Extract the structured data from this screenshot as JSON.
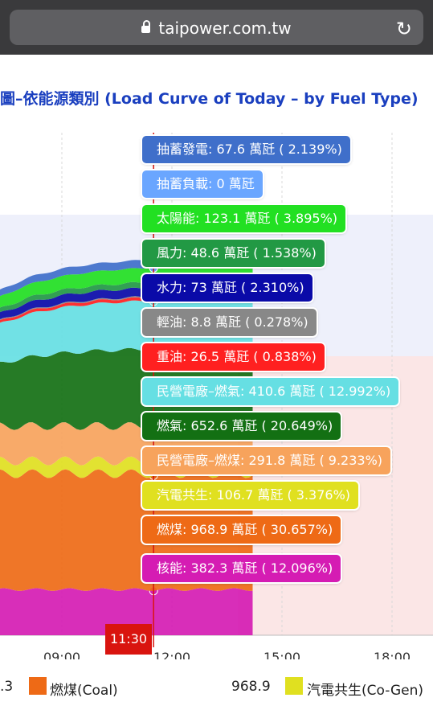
{
  "browser": {
    "url": "taipower.com.tw"
  },
  "page": {
    "title": "圖–依能源類別 (Load Curve of Today – by Fuel Type)"
  },
  "colors": {
    "hydro_pump_gen": "#3f6fca",
    "hydro_pump_load": "#6aa6ff",
    "solar": "#22e022",
    "wind": "#229944",
    "hydro": "#0a0aa8",
    "light_oil": "#888888",
    "heavy_oil": "#ff2020",
    "ipp_lng": "#66dfe3",
    "lng": "#137013",
    "ipp_coal": "#f7a35c",
    "cogen": "#e0e020",
    "coal": "#ee6a16",
    "nuclear": "#d51cb3",
    "cursor": "#d9140f"
  },
  "chart_data": {
    "type": "area",
    "title": "圖–依能源類別 (Load Curve of Today – by Fuel Type)",
    "x_ticks": [
      "09:00",
      "12:00",
      "15:00",
      "18:00"
    ],
    "cursor_time": "11:30",
    "unit": "萬瓩",
    "series": [
      {
        "name": "核能",
        "value": 382.3,
        "unit": "萬瓩",
        "percent": "12.096%",
        "color": "#d51cb3"
      },
      {
        "name": "燃煤",
        "value": 968.9,
        "unit": "萬瓩",
        "percent": "30.657%",
        "color": "#ee6a16"
      },
      {
        "name": "汽電共生",
        "value": 106.7,
        "unit": "萬瓩",
        "percent": "3.376%",
        "color": "#e0e020"
      },
      {
        "name": "民營電廠–燃煤",
        "value": 291.8,
        "unit": "萬瓩",
        "percent": "9.233%",
        "color": "#f7a35c"
      },
      {
        "name": "燃氣",
        "value": 652.6,
        "unit": "萬瓩",
        "percent": "20.649%",
        "color": "#137013"
      },
      {
        "name": "民營電廠–燃氣",
        "value": 410.6,
        "unit": "萬瓩",
        "percent": "12.992%",
        "color": "#66dfe3"
      },
      {
        "name": "重油",
        "value": 26.5,
        "unit": "萬瓩",
        "percent": "0.838%",
        "color": "#ff2020"
      },
      {
        "name": "輕油",
        "value": 8.8,
        "unit": "萬瓩",
        "percent": "0.278%",
        "color": "#888888"
      },
      {
        "name": "水力",
        "value": 73,
        "unit": "萬瓩",
        "percent": "2.310%",
        "color": "#0a0aa8"
      },
      {
        "name": "風力",
        "value": 48.6,
        "unit": "萬瓩",
        "percent": "1.538%",
        "color": "#229944"
      },
      {
        "name": "太陽能",
        "value": 123.1,
        "unit": "萬瓩",
        "percent": "3.895%",
        "color": "#22e022"
      },
      {
        "name": "抽蓄負載",
        "value": 0,
        "unit": "萬瓩",
        "percent": "",
        "color": "#6aa6ff"
      },
      {
        "name": "抽蓄發電",
        "value": 67.6,
        "unit": "萬瓩",
        "percent": "2.139%",
        "color": "#3f6fca"
      }
    ],
    "legend": [
      {
        "value": ".3"
      },
      {
        "label": "燃煤(Coal)",
        "color": "#ee6a16"
      },
      {
        "value": "968.9"
      },
      {
        "label": "汽電共生(Co-Gen)",
        "color": "#e0e020"
      }
    ]
  },
  "tooltips": [
    {
      "text": "抽蓄發電: 67.6 萬瓩 ( 2.139%)",
      "color": "#3f6fca"
    },
    {
      "text": "抽蓄負載: 0 萬瓩",
      "color": "#6aa6ff"
    },
    {
      "text": "太陽能: 123.1 萬瓩 ( 3.895%)",
      "color": "#22e022"
    },
    {
      "text": "風力: 48.6 萬瓩 ( 1.538%)",
      "color": "#229944"
    },
    {
      "text": "水力: 73 萬瓩 ( 2.310%)",
      "color": "#0a0aa8"
    },
    {
      "text": "輕油: 8.8 萬瓩 ( 0.278%)",
      "color": "#888888"
    },
    {
      "text": "重油: 26.5 萬瓩 ( 0.838%)",
      "color": "#ff2020"
    },
    {
      "text": "民營電廠–燃氣: 410.6 萬瓩 ( 12.992%)",
      "color": "#66dfe3"
    },
    {
      "text": "燃氣: 652.6 萬瓩 ( 20.649%)",
      "color": "#137013"
    },
    {
      "text": "民營電廠–燃煤: 291.8 萬瓩 ( 9.233%)",
      "color": "#f7a35c"
    },
    {
      "text": "汽電共生: 106.7 萬瓩 ( 3.376%)",
      "color": "#e0e020"
    },
    {
      "text": "燃煤: 968.9 萬瓩 ( 30.657%)",
      "color": "#ee6a16"
    },
    {
      "text": "核能: 382.3 萬瓩 ( 12.096%)",
      "color": "#d51cb3"
    }
  ]
}
